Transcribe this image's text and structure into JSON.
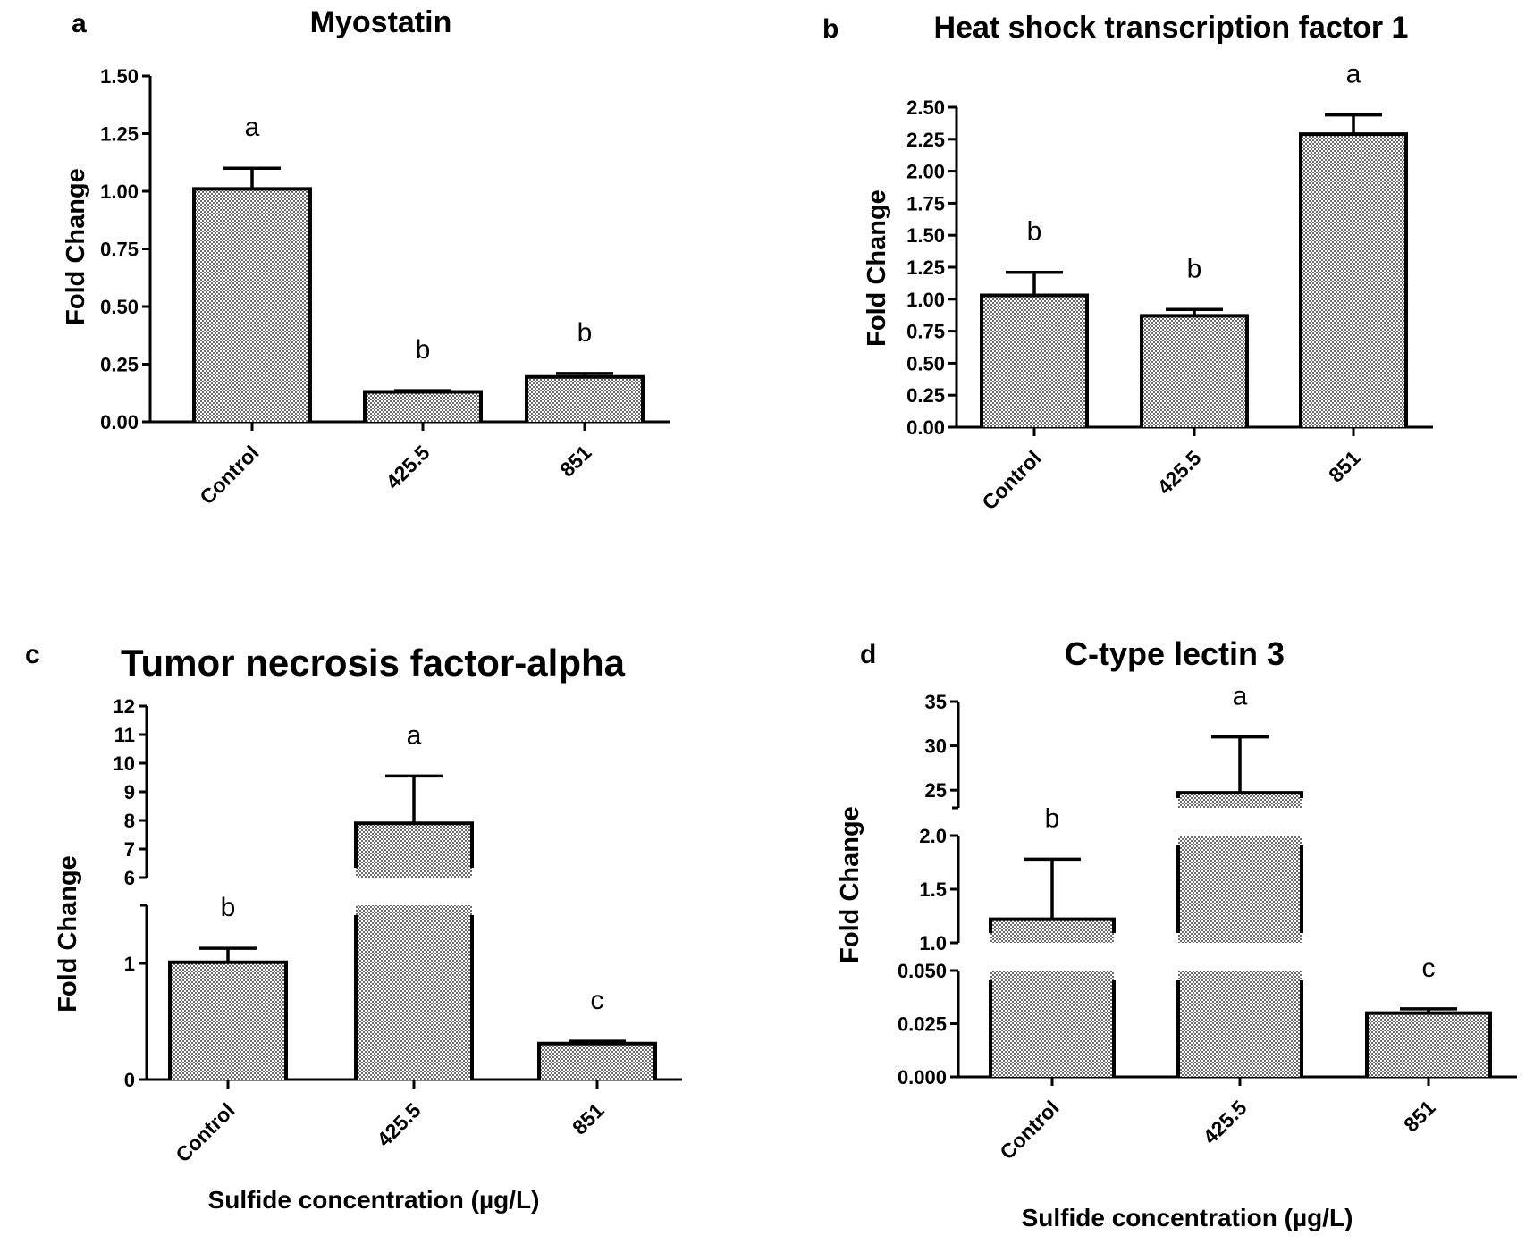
{
  "chart_data": [
    {
      "id": "a",
      "panel_letter": "a",
      "type": "bar",
      "title": "Myostatin",
      "ylabel": "Fold Change",
      "xlabel": "",
      "categories": [
        "Control",
        "425.5",
        "851"
      ],
      "values": [
        1.01,
        0.13,
        0.195
      ],
      "error": [
        0.09,
        0.005,
        0.015
      ],
      "letters": [
        "a",
        "b",
        "b"
      ],
      "ylim": [
        0,
        1.5
      ],
      "yticks": [
        "0.00",
        "0.25",
        "0.50",
        "0.75",
        "1.00",
        "1.25",
        "1.50"
      ]
    },
    {
      "id": "b",
      "panel_letter": "b",
      "type": "bar",
      "title": "Heat shock transcription factor 1",
      "ylabel": "Fold Change",
      "xlabel": "",
      "categories": [
        "Control",
        "425.5",
        "851"
      ],
      "values": [
        1.03,
        0.87,
        2.29
      ],
      "error": [
        0.18,
        0.05,
        0.15
      ],
      "letters": [
        "b",
        "b",
        "a"
      ],
      "ylim": [
        0,
        2.5
      ],
      "yticks": [
        "0.00",
        "0.25",
        "0.50",
        "0.75",
        "1.00",
        "1.25",
        "1.50",
        "1.75",
        "2.00",
        "2.25",
        "2.50"
      ]
    },
    {
      "id": "c",
      "panel_letter": "c",
      "type": "bar",
      "title": "Tumor necrosis factor-alpha",
      "ylabel": "Fold Change",
      "xlabel": "Sulfide concentration (µg/L)",
      "categories": [
        "Control",
        "425.5",
        "851"
      ],
      "values": [
        1.01,
        7.9,
        0.31
      ],
      "error": [
        0.12,
        1.65,
        0.02
      ],
      "letters": [
        "b",
        "a",
        "c"
      ],
      "axis_break": true,
      "segments": [
        {
          "min": 0,
          "max": 1.5,
          "ticks": [
            "0",
            "1"
          ]
        },
        {
          "min": 6,
          "max": 12,
          "ticks": [
            "6",
            "7",
            "8",
            "9",
            "10",
            "11",
            "12"
          ]
        }
      ]
    },
    {
      "id": "d",
      "panel_letter": "d",
      "type": "bar",
      "title": "C-type lectin 3",
      "ylabel": "Fold Change",
      "xlabel": "Sulfide concentration (µg/L)",
      "categories": [
        "Control",
        "425.5",
        "851"
      ],
      "values": [
        1.22,
        24.7,
        0.03
      ],
      "error": [
        0.56,
        6.3,
        0.002
      ],
      "letters": [
        "b",
        "a",
        "c"
      ],
      "axis_break": true,
      "segments": [
        {
          "min": 0,
          "max": 0.05,
          "ticks": [
            "0.000",
            "0.025",
            "0.050"
          ]
        },
        {
          "min": 1.0,
          "max": 2.0,
          "ticks": [
            "1.0",
            "1.5",
            "2.0"
          ]
        },
        {
          "min": 23,
          "max": 35,
          "ticks": [
            "25",
            "30",
            "35"
          ]
        }
      ]
    }
  ]
}
